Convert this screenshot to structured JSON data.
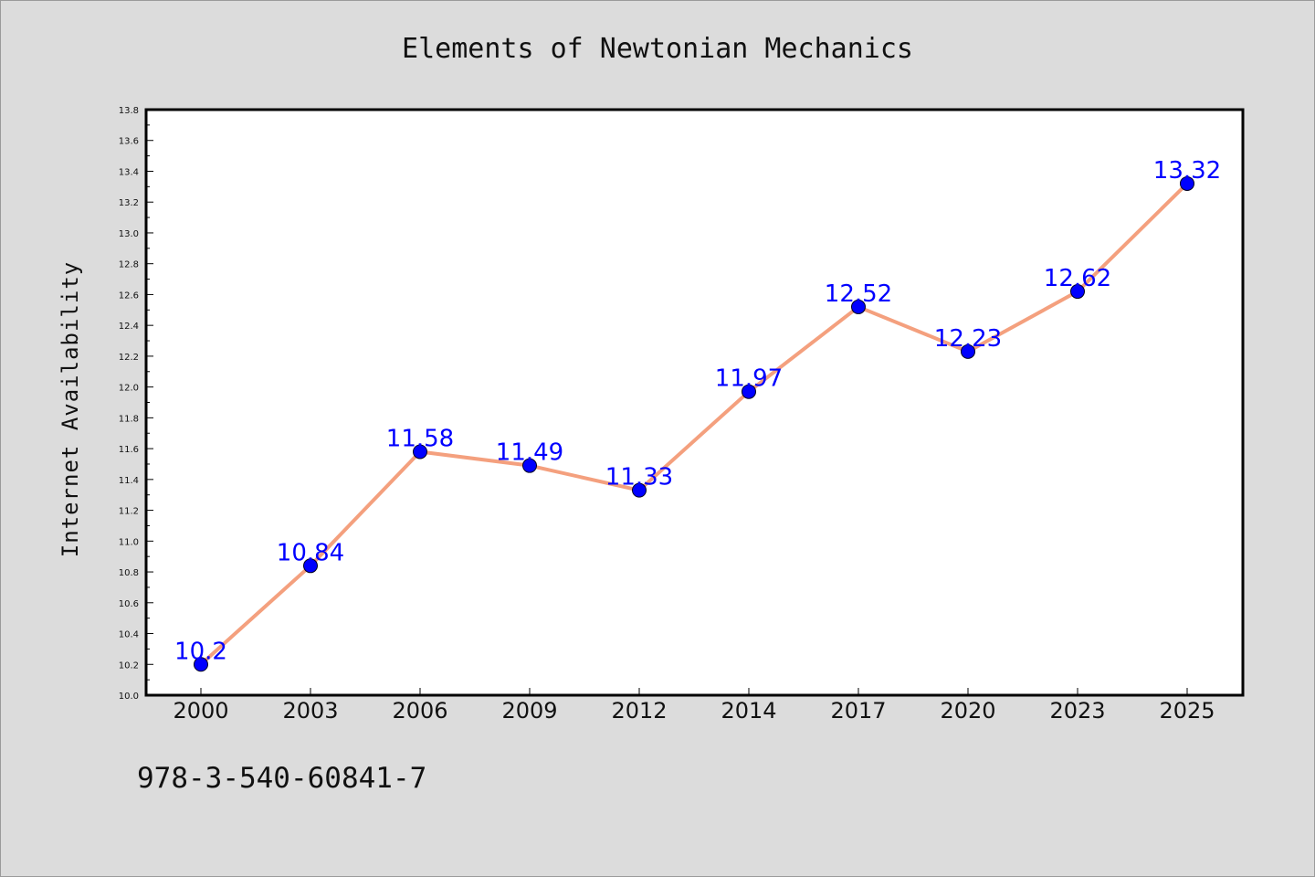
{
  "chart_data": {
    "type": "line",
    "title": "Elements of Newtonian Mechanics",
    "xlabel": "",
    "ylabel": "Internet Availability",
    "categories": [
      "2000",
      "2003",
      "2006",
      "2009",
      "2012",
      "2014",
      "2017",
      "2020",
      "2023",
      "2025"
    ],
    "series": [
      {
        "values": [
          10.2,
          10.84,
          11.58,
          11.49,
          11.33,
          11.97,
          12.52,
          12.23,
          12.62,
          13.32
        ],
        "labels": [
          "10.2",
          "10.84",
          "11.58",
          "11.49",
          "11.33",
          "11.97",
          "12.52",
          "12.23",
          "12.62",
          "13.32"
        ]
      }
    ],
    "ylim": [
      10.0,
      13.8
    ],
    "yticks": [
      "10.0",
      "10.2",
      "10.4",
      "10.6",
      "10.8",
      "11.0",
      "11.2",
      "11.4",
      "11.6",
      "11.8",
      "12.0",
      "12.2",
      "12.4",
      "12.6",
      "12.8",
      "13.0",
      "13.2",
      "13.4",
      "13.6",
      "13.8"
    ],
    "grid": false,
    "legend": "none",
    "colors": {
      "line": "#f4a07e",
      "marker": "#0000ff",
      "data_label": "#0000ff",
      "plot_background": "#ffffff",
      "figure_background": "#dcdcdc"
    }
  },
  "footer": {
    "isbn": "978-3-540-60841-7"
  }
}
